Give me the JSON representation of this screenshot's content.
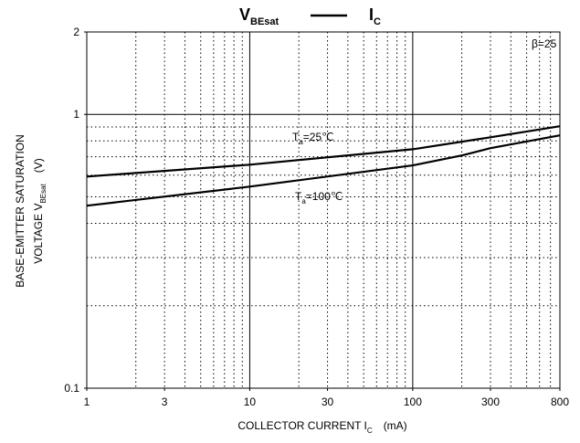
{
  "chart_data": {
    "type": "line",
    "title_left": "V",
    "title_left_sub": "BEsat",
    "title_right": "I",
    "title_right_sub": "C",
    "y_label_line1": "BASE-EMITTER SATURATION",
    "y_label_line2": "VOLTAGE   V",
    "y_label_sub": "BEsat",
    "y_label_unit": "(V)",
    "x_label": "COLLECTOR CURRENT   I",
    "x_label_sub": "C",
    "x_label_unit": "(mA)",
    "annotations": [
      {
        "text": "β=25"
      },
      {
        "text": "T",
        "sub": "a",
        "rest": "=25℃"
      },
      {
        "text": "T",
        "sub": "a",
        "rest": "=100℃"
      }
    ],
    "x_log": true,
    "y_log": true,
    "xlim": [
      1,
      800
    ],
    "ylim": [
      0.1,
      2
    ],
    "xticks": [
      1,
      3,
      10,
      30,
      100,
      300,
      800
    ],
    "yticks": [
      0.1,
      1,
      2
    ],
    "x_major_grid": [
      10,
      100
    ],
    "x_minor_grid": [
      2,
      3,
      4,
      5,
      6,
      7,
      8,
      9,
      20,
      30,
      40,
      50,
      60,
      70,
      80,
      90,
      200,
      300,
      400,
      500,
      600,
      700
    ],
    "y_major_grid": [
      1
    ],
    "y_minor_grid": [
      0.2,
      0.3,
      0.4,
      0.5,
      0.6,
      0.7,
      0.8,
      0.9
    ],
    "series": [
      {
        "name": "Ta=25℃",
        "color": "#000000",
        "x": [
          1,
          10,
          100,
          300,
          800
        ],
        "values": [
          0.593,
          0.655,
          0.746,
          0.825,
          0.905
        ]
      },
      {
        "name": "Ta=100℃",
        "color": "#000000",
        "x": [
          1,
          10,
          100,
          200,
          300,
          800
        ],
        "values": [
          0.464,
          0.545,
          0.651,
          0.708,
          0.753,
          0.838
        ]
      }
    ]
  }
}
